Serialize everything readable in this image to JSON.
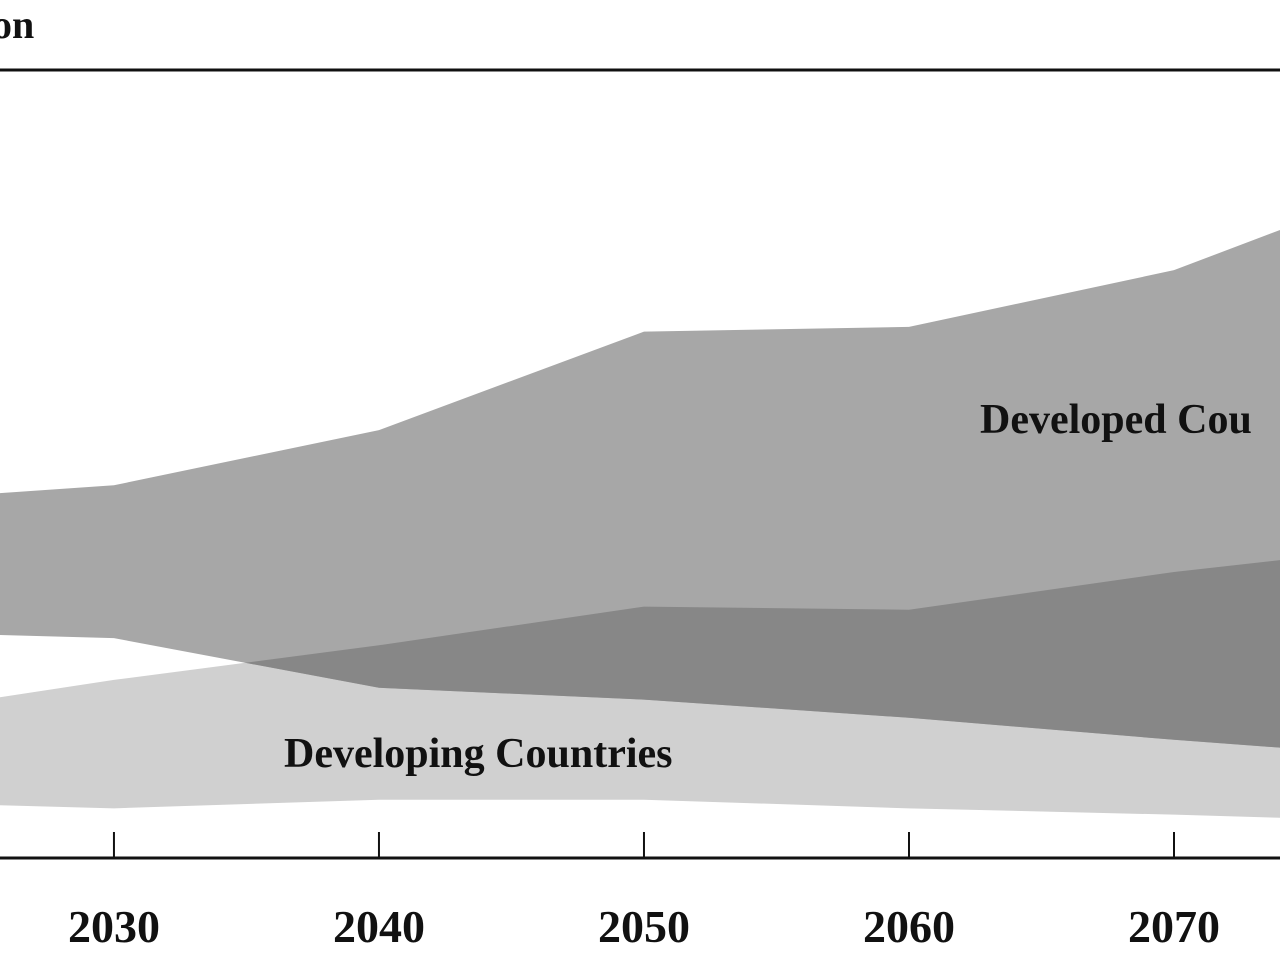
{
  "chart_data": {
    "type": "range-area",
    "title": "on",
    "x": [
      2025.7,
      2030,
      2040,
      2050,
      2060,
      2070,
      2074
    ],
    "xlim": [
      2025.7,
      2074
    ],
    "xticks": [
      2030,
      2040,
      2050,
      2060,
      2070
    ],
    "ylim": [
      0,
      100
    ],
    "overlap_color": "#878787",
    "series": [
      {
        "name": "Developed Cou",
        "color": "#a7a7a7",
        "high": [
          46.3,
          47.3,
          54.3,
          66.8,
          67.4,
          74.6,
          79.7
        ],
        "low": [
          28.3,
          27.9,
          21.6,
          20.1,
          17.8,
          15.0,
          14.0
        ]
      },
      {
        "name": "Developing Countries",
        "color": "#d0d0d0",
        "high": [
          20.4,
          22.6,
          27.0,
          31.9,
          31.5,
          36.3,
          37.8
        ],
        "low": [
          6.7,
          6.3,
          7.4,
          7.4,
          6.3,
          5.5,
          5.1
        ]
      }
    ]
  }
}
